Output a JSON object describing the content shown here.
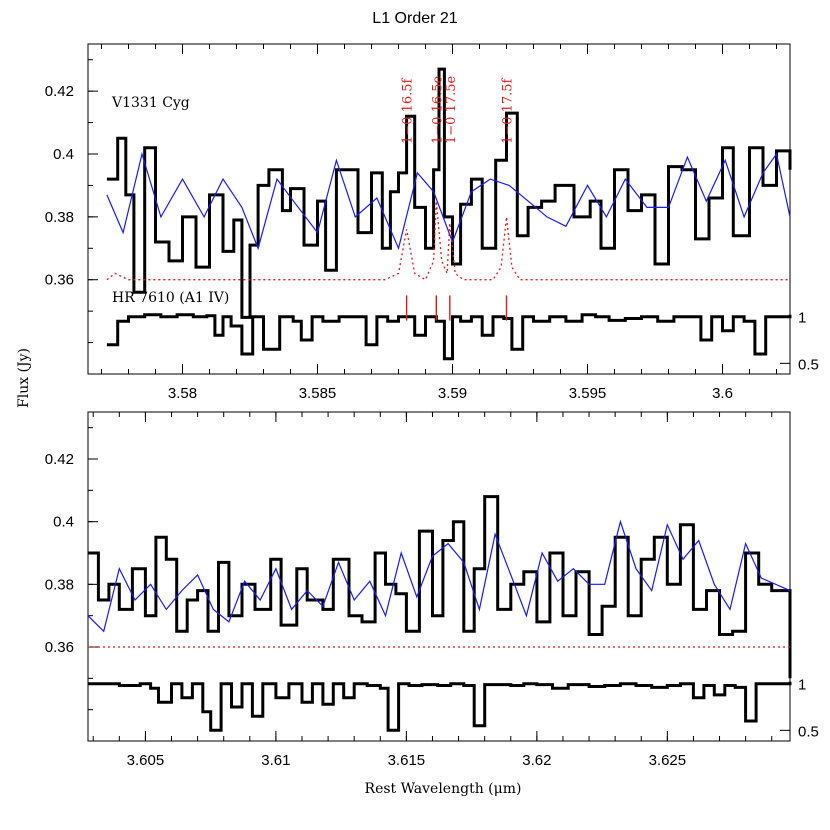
{
  "figure": {
    "title": "L1 Order 21",
    "ylabel": "Flux (Jy)",
    "xlabel": "Rest Wavelength (μm)"
  },
  "colors": {
    "data": "#000000",
    "model": "#1a1aff",
    "lines": "#e21a1a"
  },
  "chart_data": [
    {
      "type": "line",
      "panel": "top",
      "title": "L1 Order 21",
      "xlim": [
        3.5765,
        3.6025
      ],
      "ylim": [
        0.33,
        0.435
      ],
      "x_ticks": [
        3.58,
        3.585,
        3.59,
        3.595,
        3.6
      ],
      "x_tick_labels": [
        "3.58",
        "3.585",
        "3.59",
        "3.595",
        "3.6"
      ],
      "y_ticks": [
        0.36,
        0.38,
        0.4,
        0.42
      ],
      "y_tick_labels": [
        "0.36",
        "0.38",
        "0.4",
        "0.42"
      ],
      "right_ticks": [
        1,
        0.5
      ],
      "right_tick_labels": [
        "1",
        "0.5"
      ],
      "target_label": "V1331 Cyg",
      "standard_label": "HR 7610 (A1 IV)",
      "line_ids": [
        {
          "label": "1−0 16.5f",
          "x": 3.5883
        },
        {
          "label": "1−0 16.5e",
          "x": 3.5894
        },
        {
          "label": "1−0 17.5e",
          "x": 3.5899
        },
        {
          "label": "1−0 17.5f",
          "x": 3.592
        }
      ],
      "continuum": 0.36,
      "series": [
        {
          "role": "observed",
          "x": [
            3.5772,
            3.5776,
            3.5779,
            3.5782,
            3.5786,
            3.579,
            3.5795,
            3.58,
            3.5805,
            3.581,
            3.5815,
            3.5819,
            3.5822,
            3.5825,
            3.5828,
            3.5832,
            3.5837,
            3.584,
            3.5845,
            3.585,
            3.5853,
            3.5857,
            3.586,
            3.5865,
            3.587,
            3.5874,
            3.5877,
            3.588,
            3.5883,
            3.5886,
            3.589,
            3.5893,
            3.5895,
            3.5897,
            3.59,
            3.5903,
            3.5907,
            3.5911,
            3.5916,
            3.592,
            3.5924,
            3.5928,
            3.5933,
            3.5938,
            3.5945,
            3.5951,
            3.5955,
            3.596,
            3.5965,
            3.597,
            3.5975,
            3.598,
            3.5985,
            3.599,
            3.5995,
            3.6,
            3.6004,
            3.601,
            3.6015,
            3.602,
            3.6025
          ],
          "values": [
            0.392,
            0.405,
            0.387,
            0.356,
            0.402,
            0.372,
            0.366,
            0.38,
            0.364,
            0.387,
            0.369,
            0.379,
            0.348,
            0.371,
            0.39,
            0.395,
            0.382,
            0.389,
            0.371,
            0.385,
            0.363,
            0.395,
            0.395,
            0.375,
            0.394,
            0.37,
            0.388,
            0.394,
            0.412,
            0.383,
            0.37,
            0.395,
            0.427,
            0.38,
            0.365,
            0.384,
            0.392,
            0.37,
            0.398,
            0.413,
            0.374,
            0.383,
            0.385,
            0.39,
            0.38,
            0.385,
            0.37,
            0.395,
            0.382,
            0.387,
            0.365,
            0.396,
            0.395,
            0.373,
            0.386,
            0.402,
            0.374,
            0.402,
            0.39,
            0.401,
            0.395
          ]
        },
        {
          "role": "model",
          "x": [
            3.5772,
            3.5778,
            3.5785,
            3.5792,
            3.58,
            3.5808,
            3.5815,
            3.5822,
            3.5828,
            3.5835,
            3.5842,
            3.585,
            3.5857,
            3.5864,
            3.5872,
            3.588,
            3.5887,
            3.5893,
            3.59,
            3.5907,
            3.5914,
            3.5921,
            3.5928,
            3.5935,
            3.5942,
            3.595,
            3.5957,
            3.5964,
            3.5972,
            3.598,
            3.5987,
            3.5994,
            3.6001,
            3.6008,
            3.6015,
            3.602,
            3.6025
          ],
          "values": [
            0.387,
            0.375,
            0.4,
            0.38,
            0.392,
            0.38,
            0.392,
            0.383,
            0.37,
            0.392,
            0.384,
            0.375,
            0.398,
            0.38,
            0.386,
            0.37,
            0.394,
            0.388,
            0.372,
            0.388,
            0.392,
            0.39,
            0.385,
            0.38,
            0.377,
            0.39,
            0.38,
            0.392,
            0.383,
            0.383,
            0.399,
            0.385,
            0.398,
            0.38,
            0.394,
            0.4,
            0.38
          ]
        },
        {
          "role": "line-model",
          "x": [
            3.5772,
            3.5775,
            3.578,
            3.583,
            3.5875,
            3.588,
            3.5883,
            3.5886,
            3.589,
            3.5893,
            3.5894,
            3.5896,
            3.5898,
            3.5899,
            3.5901,
            3.5904,
            3.5915,
            3.5918,
            3.592,
            3.5922,
            3.5925,
            3.596,
            3.6025
          ],
          "values": [
            0.36,
            0.362,
            0.36,
            0.36,
            0.36,
            0.362,
            0.376,
            0.362,
            0.36,
            0.366,
            0.385,
            0.366,
            0.362,
            0.378,
            0.362,
            0.36,
            0.36,
            0.364,
            0.38,
            0.364,
            0.36,
            0.36,
            0.36
          ]
        },
        {
          "role": "telluric-standard",
          "x": [
            3.5772,
            3.5776,
            3.578,
            3.5786,
            3.5792,
            3.5798,
            3.5804,
            3.5809,
            3.5812,
            3.5815,
            3.5818,
            3.5822,
            3.5826,
            3.583,
            3.5836,
            3.5841,
            3.5844,
            3.5848,
            3.5852,
            3.5858,
            3.5864,
            3.5868,
            3.5872,
            3.5876,
            3.588,
            3.5883,
            3.5886,
            3.589,
            3.5894,
            3.5897,
            3.59,
            3.5903,
            3.5907,
            3.5911,
            3.5915,
            3.5919,
            3.5922,
            3.5926,
            3.593,
            3.5936,
            3.5942,
            3.5948,
            3.5953,
            3.5958,
            3.5964,
            3.597,
            3.5976,
            3.5982,
            3.5988,
            3.5992,
            3.5996,
            3.6,
            3.6004,
            3.6008,
            3.6012,
            3.6016,
            3.602,
            3.6025
          ],
          "values": [
            0.7,
            0.95,
            1.0,
            1.02,
            1.0,
            1.02,
            1.0,
            1.01,
            0.8,
            1.0,
            0.9,
            0.6,
            1.0,
            0.65,
            1.0,
            0.95,
            0.75,
            1.0,
            0.95,
            1.0,
            1.0,
            0.7,
            1.0,
            0.95,
            1.0,
            1.0,
            0.8,
            1.0,
            0.95,
            0.55,
            1.0,
            0.95,
            1.0,
            0.8,
            1.0,
            0.98,
            0.65,
            1.0,
            0.95,
            1.0,
            0.95,
            1.02,
            1.0,
            0.96,
            0.98,
            1.0,
            0.95,
            1.0,
            1.0,
            0.75,
            1.0,
            0.85,
            1.0,
            0.95,
            0.6,
            1.0,
            1.0,
            1.02
          ]
        }
      ]
    },
    {
      "type": "line",
      "panel": "bottom",
      "xlim": [
        3.6028,
        3.6297
      ],
      "ylim": [
        0.33,
        0.435
      ],
      "x_ticks": [
        3.605,
        3.61,
        3.615,
        3.62,
        3.625
      ],
      "x_tick_labels": [
        "3.605",
        "3.61",
        "3.615",
        "3.62",
        "3.625"
      ],
      "y_ticks": [
        0.36,
        0.38,
        0.4,
        0.42
      ],
      "y_tick_labels": [
        "0.36",
        "0.38",
        "0.4",
        "0.42"
      ],
      "right_ticks": [
        1,
        0.5
      ],
      "right_tick_labels": [
        "1",
        "0.5"
      ],
      "continuum": 0.36,
      "series": [
        {
          "role": "observed",
          "x": [
            3.6028,
            3.6032,
            3.6036,
            3.604,
            3.6045,
            3.605,
            3.6054,
            3.6058,
            3.6062,
            3.6066,
            3.607,
            3.6074,
            3.6078,
            3.6082,
            3.6087,
            3.6092,
            3.6098,
            3.6102,
            3.6108,
            3.6112,
            3.6118,
            3.6122,
            3.6128,
            3.6133,
            3.6138,
            3.6142,
            3.6146,
            3.615,
            3.6155,
            3.616,
            3.6164,
            3.6168,
            3.6172,
            3.6176,
            3.618,
            3.6185,
            3.619,
            3.6195,
            3.62,
            3.6205,
            3.621,
            3.6215,
            3.622,
            3.6225,
            3.623,
            3.6235,
            3.624,
            3.6245,
            3.625,
            3.6255,
            3.626,
            3.6265,
            3.627,
            3.6275,
            3.628,
            3.6285,
            3.629,
            3.6297
          ],
          "values": [
            0.39,
            0.375,
            0.38,
            0.372,
            0.385,
            0.37,
            0.395,
            0.388,
            0.365,
            0.375,
            0.378,
            0.365,
            0.387,
            0.37,
            0.38,
            0.372,
            0.388,
            0.367,
            0.385,
            0.375,
            0.372,
            0.388,
            0.37,
            0.368,
            0.39,
            0.38,
            0.377,
            0.365,
            0.397,
            0.37,
            0.394,
            0.4,
            0.365,
            0.385,
            0.408,
            0.372,
            0.38,
            0.384,
            0.368,
            0.39,
            0.37,
            0.384,
            0.364,
            0.373,
            0.395,
            0.37,
            0.388,
            0.395,
            0.38,
            0.399,
            0.372,
            0.378,
            0.364,
            0.365,
            0.39,
            0.38,
            0.378,
            0.35
          ]
        },
        {
          "role": "model",
          "x": [
            3.6028,
            3.6034,
            3.604,
            3.6046,
            3.6052,
            3.6058,
            3.6064,
            3.607,
            3.6076,
            3.6082,
            3.6088,
            3.6094,
            3.61,
            3.6106,
            3.6112,
            3.6118,
            3.6124,
            3.613,
            3.6136,
            3.6142,
            3.6148,
            3.6154,
            3.616,
            3.6166,
            3.6172,
            3.6178,
            3.6184,
            3.619,
            3.6196,
            3.6202,
            3.6208,
            3.6214,
            3.622,
            3.6226,
            3.6232,
            3.6238,
            3.6244,
            3.625,
            3.6256,
            3.6262,
            3.6268,
            3.6274,
            3.628,
            3.6286,
            3.6297
          ],
          "values": [
            0.37,
            0.365,
            0.385,
            0.375,
            0.38,
            0.372,
            0.378,
            0.383,
            0.372,
            0.368,
            0.381,
            0.375,
            0.385,
            0.372,
            0.378,
            0.373,
            0.387,
            0.375,
            0.381,
            0.37,
            0.39,
            0.376,
            0.389,
            0.393,
            0.387,
            0.372,
            0.396,
            0.383,
            0.37,
            0.39,
            0.381,
            0.385,
            0.38,
            0.38,
            0.4,
            0.385,
            0.378,
            0.399,
            0.388,
            0.394,
            0.38,
            0.372,
            0.393,
            0.382,
            0.378
          ]
        },
        {
          "role": "line-model",
          "x": [
            3.6028,
            3.6297
          ],
          "values": [
            0.36,
            0.36
          ]
        },
        {
          "role": "telluric-standard",
          "x": [
            3.6028,
            3.604,
            3.6048,
            3.6052,
            3.6055,
            3.606,
            3.6064,
            3.6068,
            3.6072,
            3.6075,
            3.6079,
            3.6083,
            3.6087,
            3.6091,
            3.6095,
            3.61,
            3.6105,
            3.611,
            3.6114,
            3.6118,
            3.6122,
            3.6126,
            3.613,
            3.6135,
            3.614,
            3.6143,
            3.6147,
            3.6151,
            3.6156,
            3.6162,
            3.6167,
            3.6172,
            3.6176,
            3.618,
            3.6185,
            3.619,
            3.6195,
            3.62,
            3.6206,
            3.6212,
            3.6216,
            3.622,
            3.6226,
            3.6232,
            3.6238,
            3.6244,
            3.625,
            3.6255,
            3.626,
            3.6264,
            3.6268,
            3.6272,
            3.6276,
            3.628,
            3.6284,
            3.6288,
            3.6292,
            3.6297
          ],
          "values": [
            1.0,
            0.98,
            1.0,
            0.95,
            0.8,
            1.0,
            0.85,
            1.0,
            0.7,
            0.5,
            1.0,
            0.75,
            1.0,
            0.65,
            1.0,
            0.85,
            1.0,
            0.8,
            1.0,
            0.78,
            1.0,
            0.85,
            1.0,
            0.98,
            0.95,
            0.5,
            1.0,
            0.98,
            0.99,
            0.98,
            1.0,
            0.98,
            0.55,
            0.99,
            0.99,
            0.98,
            1.0,
            0.99,
            0.95,
            0.99,
            0.99,
            0.97,
            0.98,
            1.0,
            0.98,
            0.96,
            0.98,
            1.0,
            0.85,
            0.98,
            0.88,
            0.98,
            0.96,
            0.6,
            1.0,
            1.0,
            1.0,
            1.02
          ]
        }
      ]
    }
  ]
}
